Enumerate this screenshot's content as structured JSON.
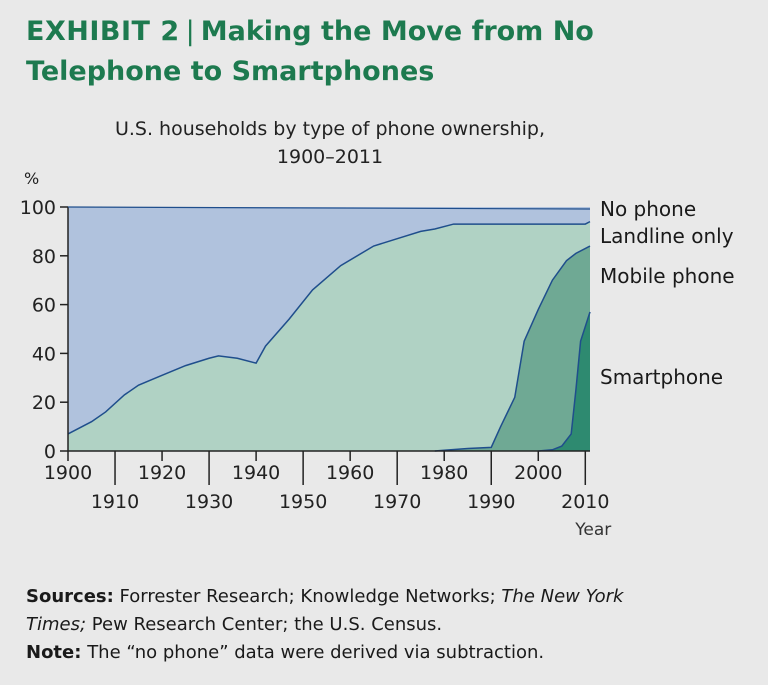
{
  "title": {
    "exhibit": "EXHIBIT 2",
    "separator": "|",
    "line1": "Making the Move from No",
    "line2": "Telephone to Smartphones"
  },
  "chart_data": {
    "type": "area",
    "title": "U.S. households by type of phone ownership,",
    "subtitle": "1900–2011",
    "ylabel": "%",
    "xlabel": "Year",
    "ylim": [
      0,
      100
    ],
    "xlim": [
      1900,
      2011
    ],
    "yticks": [
      0,
      20,
      40,
      60,
      80,
      100
    ],
    "xticks_top": [
      1900,
      1920,
      1940,
      1960,
      1980,
      2000
    ],
    "xticks_bottom": [
      1910,
      1930,
      1950,
      1970,
      1990,
      2010
    ],
    "colors": {
      "No phone": "#b0c2dd",
      "Landline only": "#b0d2c4",
      "Mobile phone": "#6fa994",
      "Smartphone": "#2e8a70",
      "line": "#1f4e8c"
    },
    "series": [
      {
        "name": "No phone",
        "label_value": 100,
        "x": [
          1900,
          2011
        ],
        "values": [
          100,
          100
        ]
      },
      {
        "name": "Landline only",
        "x": [
          1900,
          1905,
          1908,
          1912,
          1915,
          1920,
          1925,
          1930,
          1932,
          1936,
          1940,
          1942,
          1947,
          1952,
          1958,
          1965,
          1970,
          1975,
          1978,
          1982,
          1985,
          1990,
          2000,
          2005,
          2008,
          2010,
          2011
        ],
        "values": [
          7,
          12,
          16,
          23,
          27,
          31,
          35,
          38,
          39,
          38,
          36,
          43,
          54,
          66,
          76,
          84,
          87,
          90,
          91,
          93,
          93,
          93,
          93,
          93,
          93,
          93,
          94
        ]
      },
      {
        "name": "Mobile phone",
        "x": [
          1978,
          1980,
          1985,
          1990,
          1992,
          1995,
          1997,
          2000,
          2003,
          2006,
          2008,
          2011
        ],
        "values": [
          0,
          0.3,
          1,
          1.5,
          10,
          22,
          45,
          58,
          70,
          78,
          81,
          84
        ]
      },
      {
        "name": "Smartphone",
        "x": [
          2000,
          2003,
          2005,
          2007,
          2008,
          2009,
          2011
        ],
        "values": [
          0,
          0.5,
          2,
          7,
          25,
          45,
          57
        ]
      }
    ]
  },
  "footnote": {
    "sources_label": "Sources:",
    "sources_text_1": "Forrester Research; Knowledge Networks;",
    "sources_italic_1": "The New York",
    "sources_italic_2": "Times;",
    "sources_text_2": "Pew Research Center; the U.S. Census.",
    "note_label": "Note:",
    "note_text": "The “no phone” data were derived via subtraction."
  }
}
